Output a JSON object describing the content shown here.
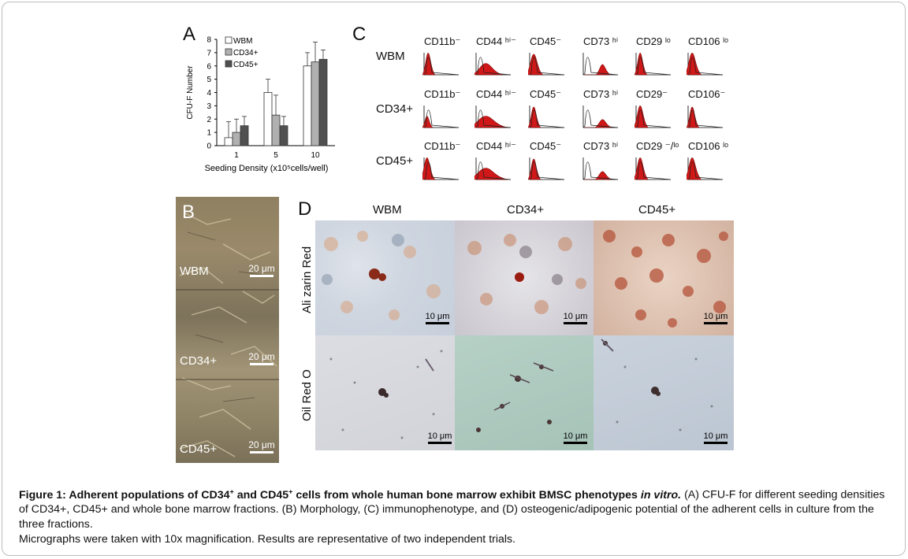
{
  "panels": {
    "A": "A",
    "B": "B",
    "C": "C",
    "D": "D"
  },
  "chart_data": {
    "type": "bar",
    "ylabel": "CFU-F Number",
    "xlabel": "Seeding Density (x10⁵cells/well)",
    "categories": [
      "1",
      "5",
      "10"
    ],
    "ylim": [
      0,
      8
    ],
    "yticks": [
      "0",
      "1",
      "2",
      "3",
      "4",
      "5",
      "6",
      "7",
      "8"
    ],
    "series": [
      {
        "name": "WBM",
        "color": "#ffffff",
        "values": [
          0.6,
          4.0,
          6.0
        ],
        "err": [
          1.2,
          1.0,
          1.0
        ]
      },
      {
        "name": "CD34+",
        "color": "#b0b0b0",
        "values": [
          1.0,
          2.3,
          6.3
        ],
        "err": [
          1.0,
          1.5,
          1.5
        ]
      },
      {
        "name": "CD45+",
        "color": "#505050",
        "values": [
          1.5,
          1.5,
          6.5
        ],
        "err": [
          0.7,
          0.7,
          0.7
        ]
      }
    ]
  },
  "flow": {
    "rows": [
      {
        "label": "WBM",
        "markers": [
          "CD11b⁻",
          "CD44 ʰⁱ⁻",
          "CD45⁻",
          "CD73 ʰⁱ",
          "CD29 ˡᵒ",
          "CD106 ˡᵒ"
        ]
      },
      {
        "label": "CD34+",
        "markers": [
          "CD11b⁻",
          "CD44 ʰⁱ⁻",
          "CD45⁻",
          "CD73 ʰⁱ",
          "CD29⁻",
          "CD106⁻"
        ]
      },
      {
        "label": "CD45+",
        "markers": [
          "CD11b⁻",
          "CD44 ʰⁱ⁻",
          "CD45⁻",
          "CD73 ʰⁱ",
          "CD29 ⁻/ˡᵒ",
          "CD106 ˡᵒ"
        ]
      }
    ]
  },
  "morphology": {
    "labels": [
      "WBM",
      "CD34+",
      "CD45+"
    ],
    "scale": "20 μm"
  },
  "staining": {
    "columns": [
      "WBM",
      "CD34+",
      "CD45+"
    ],
    "rows": [
      "Ali zarin Red",
      "Oil Red O"
    ],
    "scale": "10 μm"
  },
  "caption": {
    "bold_part": "Figure 1: Adherent populations of CD34",
    "sup1": "+",
    "bold_mid": " and CD45",
    "sup2": "+",
    "bold_tail": " cells from whole human bone marrow exhibit BMSC phenotypes ",
    "italic_part": "in vitro.",
    "rest": " (A) CFU-F for different seeding densities of CD34+, CD45+ and whole bone marrow fractions. (B) Morphology, (C) immunophenotype, and (D) osteogenic/adipogenic potential of the adherent cells in culture from the three fractions.",
    "note": "Micrographs were taken with 10x magnification. Results are representative of two independent trials."
  }
}
